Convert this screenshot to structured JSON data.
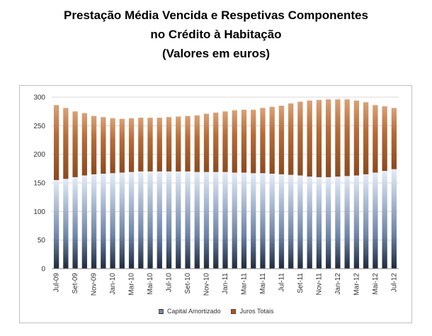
{
  "title": {
    "line1": "Prestação Média Vencida e Respetivas Componentes",
    "line2": "no Crédito à Habitação",
    "line3": "(Valores em euros)"
  },
  "colors": {
    "capital_light": "#dbe6f5",
    "capital_dark": "#1f2a3a",
    "juros_light": "#d9a276",
    "juros_dark": "#8a4a1f",
    "grid": "#d9d9d9",
    "axis": "#8c8c8c"
  },
  "chart_data": {
    "type": "bar",
    "stacked": true,
    "months": [
      "Jul-09",
      "Ago-09",
      "Set-09",
      "Out-09",
      "Nov-09",
      "Dez-09",
      "Jan-10",
      "Fev-10",
      "Mar-10",
      "Abr-10",
      "Mai-10",
      "Jun-10",
      "Jul-10",
      "Ago-10",
      "Set-10",
      "Out-10",
      "Nov-10",
      "Dez-10",
      "Jan-11",
      "Fev-11",
      "Mar-11",
      "Abr-11",
      "Mai-11",
      "Jun-11",
      "Jul-11",
      "Ago-11",
      "Set-11",
      "Out-11",
      "Nov-11",
      "Dez-11",
      "Jan-12",
      "Fev-12",
      "Mar-12",
      "Abr-12",
      "Mai-12",
      "Jun-12",
      "Jul-12"
    ],
    "x_tick_labels": [
      "Jul-09",
      "Set-09",
      "Nov-09",
      "Jan-10",
      "Mar-10",
      "Mai-10",
      "Jul-10",
      "Set-10",
      "Nov-10",
      "Jan-11",
      "Mar-11",
      "Mai-11",
      "Jul-11",
      "Set-11",
      "Nov-11",
      "Jan-12",
      "Mar-12",
      "Mai-12",
      "Jul-12"
    ],
    "series": [
      {
        "name": "Capital Amortizado",
        "values": [
          155,
          157,
          160,
          163,
          165,
          166,
          167,
          168,
          169,
          170,
          170,
          170,
          170,
          170,
          170,
          169,
          169,
          169,
          169,
          168,
          168,
          167,
          167,
          166,
          165,
          164,
          163,
          161,
          160,
          160,
          161,
          162,
          163,
          165,
          168,
          171,
          174
        ]
      },
      {
        "name": "Juros Totais",
        "values": [
          131,
          124,
          115,
          109,
          102,
          99,
          96,
          94,
          94,
          94,
          94,
          94,
          95,
          96,
          97,
          99,
          102,
          104,
          106,
          109,
          110,
          111,
          114,
          117,
          120,
          125,
          129,
          133,
          135,
          136,
          135,
          134,
          131,
          126,
          118,
          113,
          107
        ]
      }
    ],
    "ylim": [
      0,
      300
    ],
    "yticks": [
      0,
      50,
      100,
      150,
      200,
      250,
      300
    ],
    "grid": true,
    "legend": "bottom"
  }
}
